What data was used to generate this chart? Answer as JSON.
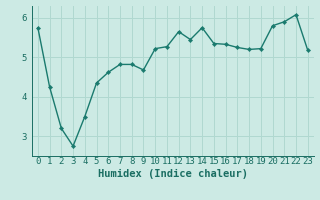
{
  "x": [
    0,
    1,
    2,
    3,
    4,
    5,
    6,
    7,
    8,
    9,
    10,
    11,
    12,
    13,
    14,
    15,
    16,
    17,
    18,
    19,
    20,
    21,
    22,
    23
  ],
  "y": [
    5.75,
    4.25,
    3.2,
    2.75,
    3.5,
    4.35,
    4.62,
    4.82,
    4.82,
    4.68,
    5.22,
    5.27,
    5.65,
    5.45,
    5.75,
    5.35,
    5.33,
    5.25,
    5.2,
    5.22,
    5.8,
    5.9,
    6.08,
    5.18
  ],
  "line_color": "#1a7a6e",
  "marker": "D",
  "marker_size": 2.2,
  "bg_color": "#cceae4",
  "grid_color": "#b0d8d0",
  "xlabel": "Humidex (Indice chaleur)",
  "xlim": [
    -0.5,
    23.5
  ],
  "ylim": [
    2.5,
    6.3
  ],
  "yticks": [
    3,
    4,
    5,
    6
  ],
  "xlabel_fontsize": 7.5,
  "tick_fontsize": 6.5,
  "line_width": 1.0,
  "axis_color": "#1a6e62",
  "spine_color": "#1a6e62"
}
